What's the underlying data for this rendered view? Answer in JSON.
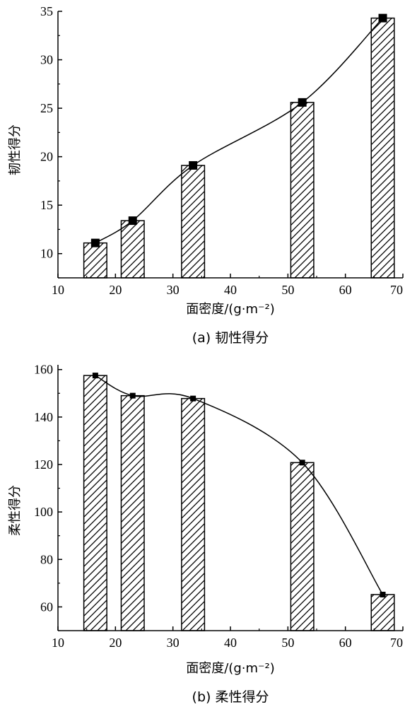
{
  "chart_data": [
    {
      "type": "bar",
      "caption": "(a) 韧性得分",
      "xlabel": "面密度/(g·m⁻²)",
      "ylabel": "韧性得分",
      "xlim": [
        10,
        70
      ],
      "ylim": [
        7.5,
        35
      ],
      "xticks": [
        10,
        20,
        30,
        40,
        50,
        60,
        70
      ],
      "yticks": [
        10,
        15,
        20,
        25,
        30,
        35
      ],
      "bar_width": 4,
      "bar_fill": "diagonal-hatch",
      "x": [
        16.5,
        23,
        33.5,
        52.5,
        66.5
      ],
      "values": [
        11.1,
        13.4,
        19.1,
        25.6,
        34.3
      ],
      "markers": [
        11.1,
        13.4,
        19.1,
        25.6,
        34.3
      ],
      "marker_style": "filled-square",
      "trend_line": "smooth-curve",
      "grid": false,
      "legend": "none"
    },
    {
      "type": "bar",
      "caption": "(b) 柔性得分",
      "xlabel": "面密度/(g·m⁻²)",
      "ylabel": "柔性得分",
      "xlim": [
        10,
        70
      ],
      "ylim": [
        50,
        162
      ],
      "xticks": [
        10,
        20,
        30,
        40,
        50,
        60,
        70
      ],
      "yticks": [
        60,
        80,
        100,
        120,
        140,
        160
      ],
      "bar_width": 4,
      "bar_fill": "diagonal-hatch",
      "x": [
        16.5,
        23,
        33.5,
        52.5,
        66.5
      ],
      "values": [
        157.5,
        149.0,
        147.8,
        120.8,
        65.2
      ],
      "markers": [
        157.5,
        149.0,
        147.8,
        120.8,
        65.2
      ],
      "marker_style": "filled-square",
      "trend_line": "smooth-curve",
      "grid": false,
      "legend": "none"
    }
  ],
  "colors": {
    "axis": "#000000",
    "bar_fill": "#ffffff",
    "hatch": "#000000",
    "marker": "#000000",
    "line": "#000000"
  }
}
